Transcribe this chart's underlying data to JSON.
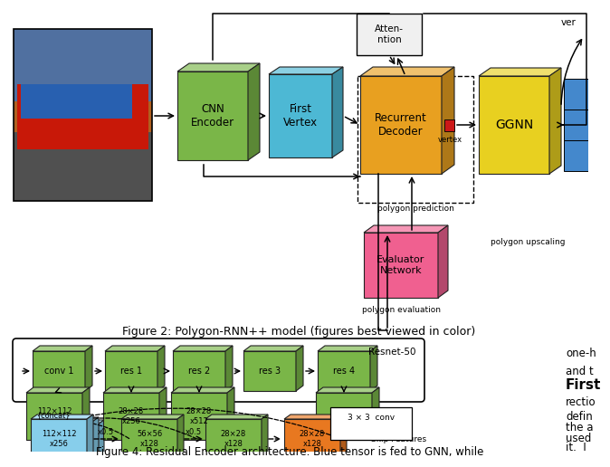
{
  "fig_caption1": "Figure 2: Polygon-RNN++ model (figures best viewed in color)",
  "fig_caption2": "Figure 4: Residual Encoder architecture. Blue tensor is fed to GNN, while",
  "resnet_label": "Resnet-50",
  "conv_legend": "3 × 3  conv",
  "bg_color": "#ffffff",
  "green": "#7ab648",
  "cyan": "#4db8d4",
  "orange": "#e8a020",
  "yellow": "#e8d020",
  "pink": "#f06090",
  "blue_skip": "#87ceeb",
  "orange_skip": "#e87820",
  "blue_right": "#4488cc",
  "right_texts": [
    "one-h",
    "and t",
    "First",
    "rectio",
    "defin",
    "the a",
    "used",
    "it.  I"
  ]
}
